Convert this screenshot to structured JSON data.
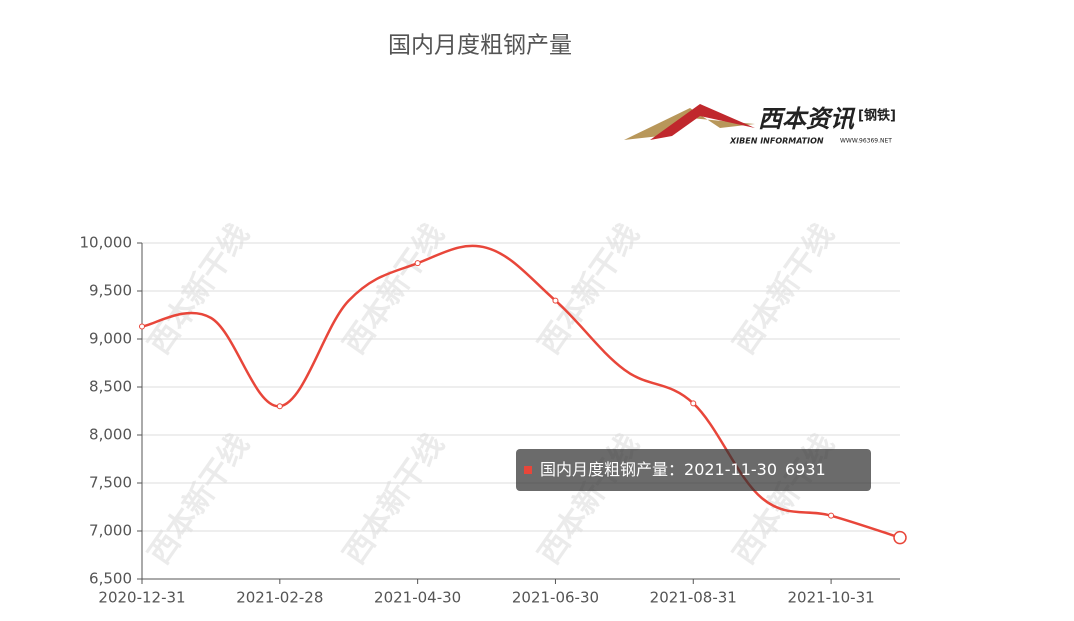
{
  "chart_data": {
    "type": "line",
    "title": "国内月度粗钢产量",
    "categories": [
      "2020-12-31",
      null,
      "2021-02-28",
      null,
      "2021-04-30",
      null,
      "2021-06-30",
      null,
      "2021-08-31",
      null,
      "2021-10-31",
      null
    ],
    "series": [
      {
        "name": "国内月度粗钢产量",
        "color": "#e8463a",
        "values": [
          9130,
          9220,
          8300,
          9400,
          9790,
          9950,
          9400,
          8680,
          8330,
          7340,
          7160,
          6931
        ]
      }
    ],
    "ylim": [
      6500,
      10000
    ],
    "yticks": [
      {
        "value": 6500,
        "label": "6,500"
      },
      {
        "value": 7000,
        "label": "7,000"
      },
      {
        "value": 7500,
        "label": "7,500"
      },
      {
        "value": 8000,
        "label": "8,000"
      },
      {
        "value": 8500,
        "label": "8,500"
      },
      {
        "value": 9000,
        "label": "9,000"
      },
      {
        "value": 9500,
        "label": "9,500"
      },
      {
        "value": 10000,
        "label": "10,000"
      }
    ],
    "grid": true,
    "tooltip": {
      "label": "国内月度粗钢产量：",
      "date": "2021-11-30",
      "index": 11
    },
    "logo": {
      "name": "西本资讯",
      "tag": "[钢铁]",
      "english": "XIBEN INFORMATION",
      "url": "WWW.96369.NET",
      "watermark": "西本新干线"
    }
  }
}
